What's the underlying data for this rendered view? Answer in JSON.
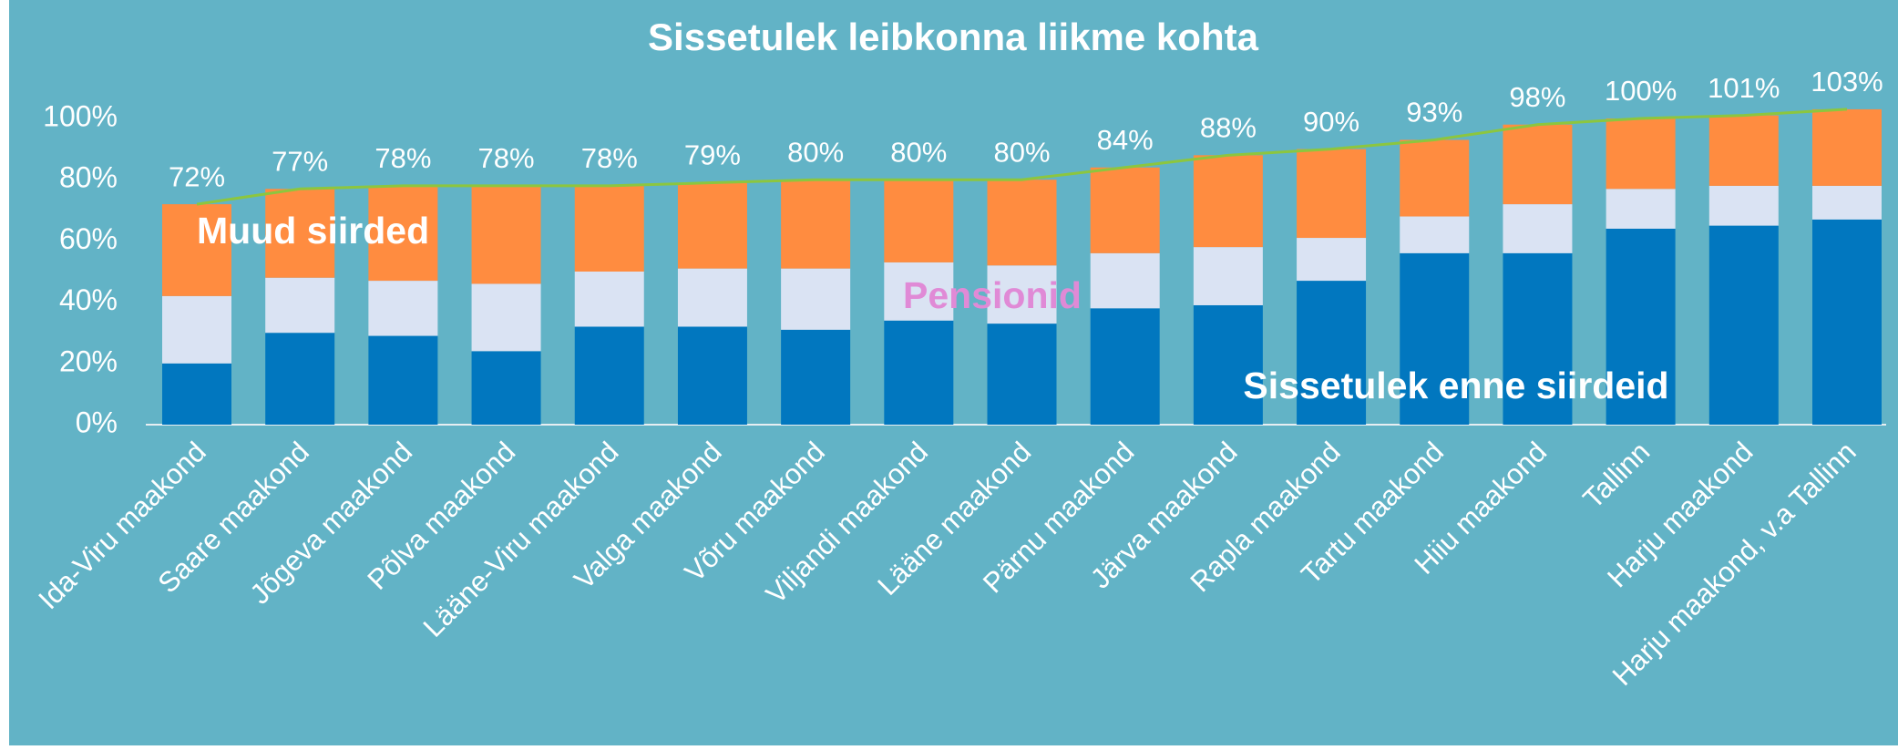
{
  "chart_data": {
    "type": "stacked_bar",
    "title": "Sissetulek leibkonna liikme kohta",
    "categories": [
      "Ida-Viru maakond",
      "Saare maakond",
      "Jõgeva maakond",
      "Põlva maakond",
      "Lääne-Viru maakond",
      "Valga maakond",
      "Võru maakond",
      "Viljandi maakond",
      "Lääne maakond",
      "Pärnu maakond",
      "Järva maakond",
      "Rapla maakond",
      "Tartu maakond",
      "Hiiu maakond",
      "Tallinn",
      "Harju maakond",
      "Harju maakond, v.a Tallinn"
    ],
    "series": [
      {
        "name": "Sissetulek enne siirdeid",
        "color": "#0177bf",
        "values": [
          20,
          30,
          29,
          24,
          32,
          32,
          31,
          34,
          33,
          38,
          39,
          47,
          56,
          56,
          64,
          65,
          67
        ]
      },
      {
        "name": "Pensionid",
        "color": "#dae3f3",
        "values": [
          22,
          18,
          18,
          22,
          18,
          19,
          20,
          19,
          19,
          18,
          19,
          14,
          12,
          16,
          13,
          13,
          11
        ]
      },
      {
        "name": "Muud siirded",
        "color": "#ff8c40",
        "values": [
          30,
          29,
          31,
          32,
          28,
          28,
          29,
          27,
          28,
          28,
          30,
          29,
          25,
          26,
          23,
          23,
          25
        ]
      }
    ],
    "line": {
      "color": "#8cc63f",
      "values": [
        72,
        77,
        78,
        78,
        78,
        79,
        80,
        80,
        80,
        84,
        88,
        90,
        93,
        98,
        100,
        101,
        103
      ],
      "value_labels": [
        "72%",
        "77%",
        "78%",
        "78%",
        "78%",
        "79%",
        "80%",
        "80%",
        "80%",
        "84%",
        "88%",
        "90%",
        "93%",
        "98%",
        "100%",
        "101%",
        "103%"
      ]
    },
    "ylim": [
      0,
      100
    ],
    "yticks": [
      {
        "value": 0,
        "label": "0%"
      },
      {
        "value": 20,
        "label": "20%"
      },
      {
        "value": 40,
        "label": "40%"
      },
      {
        "value": 60,
        "label": "60%"
      },
      {
        "value": 80,
        "label": "80%"
      },
      {
        "value": 100,
        "label": "100%"
      }
    ],
    "annotation_colors": [
      "#ffffff",
      "#e08ad6",
      "#ffffff"
    ]
  }
}
